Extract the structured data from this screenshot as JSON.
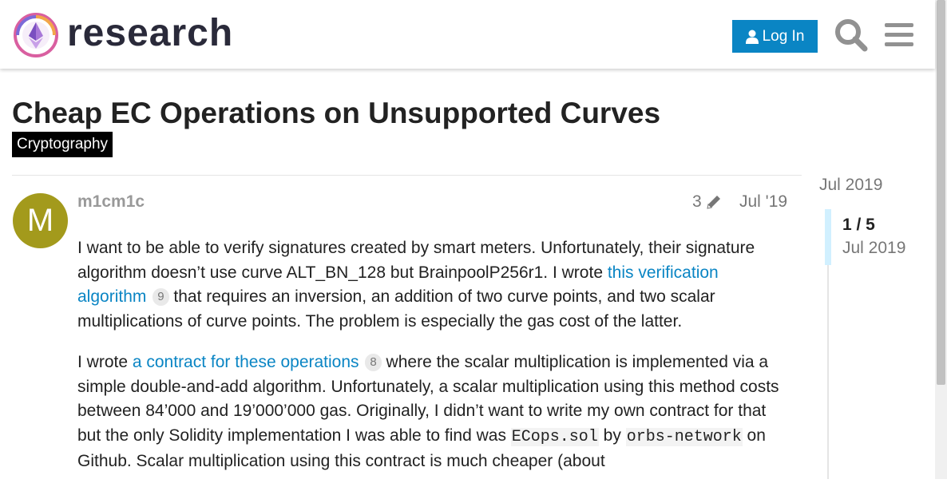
{
  "header": {
    "site_name": "research",
    "login_label": "Log In",
    "icons": [
      "user-icon",
      "search-icon",
      "hamburger-menu-icon"
    ]
  },
  "topic": {
    "title": "Cheap EC Operations on Unsupported Curves",
    "category": "Cryptography",
    "category_color": "#000000"
  },
  "post": {
    "avatar_letter": "M",
    "avatar_color": "#a39a1c",
    "username": "m1cm1c",
    "edit_count": "3",
    "date": "Jul '19",
    "p1": {
      "t1": "I want to be able to verify signatures created by smart meters. Unfortunately, their signature algorithm doesn’t use curve ALT_BN_128 but BrainpoolP256r1. I wrote ",
      "link": "this verification algorithm",
      "clicks": "9",
      "t2": " that requires an inversion, an addition of two curve points, and two scalar multiplications of curve points. The problem is especially the gas cost of the latter."
    },
    "p2": {
      "t1": "I wrote ",
      "link": "a contract for these operations",
      "clicks": "8",
      "t2": " where the scalar multiplication is implemented via a simple double-and-add algorithm. Unfortunately, a scalar multiplication using this method costs between 84’000 and 19’000’000 gas. Originally, I didn’t want to write my own contract for that but the only Solidity implementation I was able to find was ",
      "code1": "ECops.sol",
      "t3": " by ",
      "code2": "orbs-network",
      "t4": " on Github. Scalar multiplication using this contract is much cheaper (about"
    }
  },
  "timeline": {
    "top_date": "Jul 2019",
    "position": "1 / 5",
    "current_date": "Jul 2019"
  },
  "colors": {
    "accent": "#0a85c4",
    "muted": "#777777"
  }
}
